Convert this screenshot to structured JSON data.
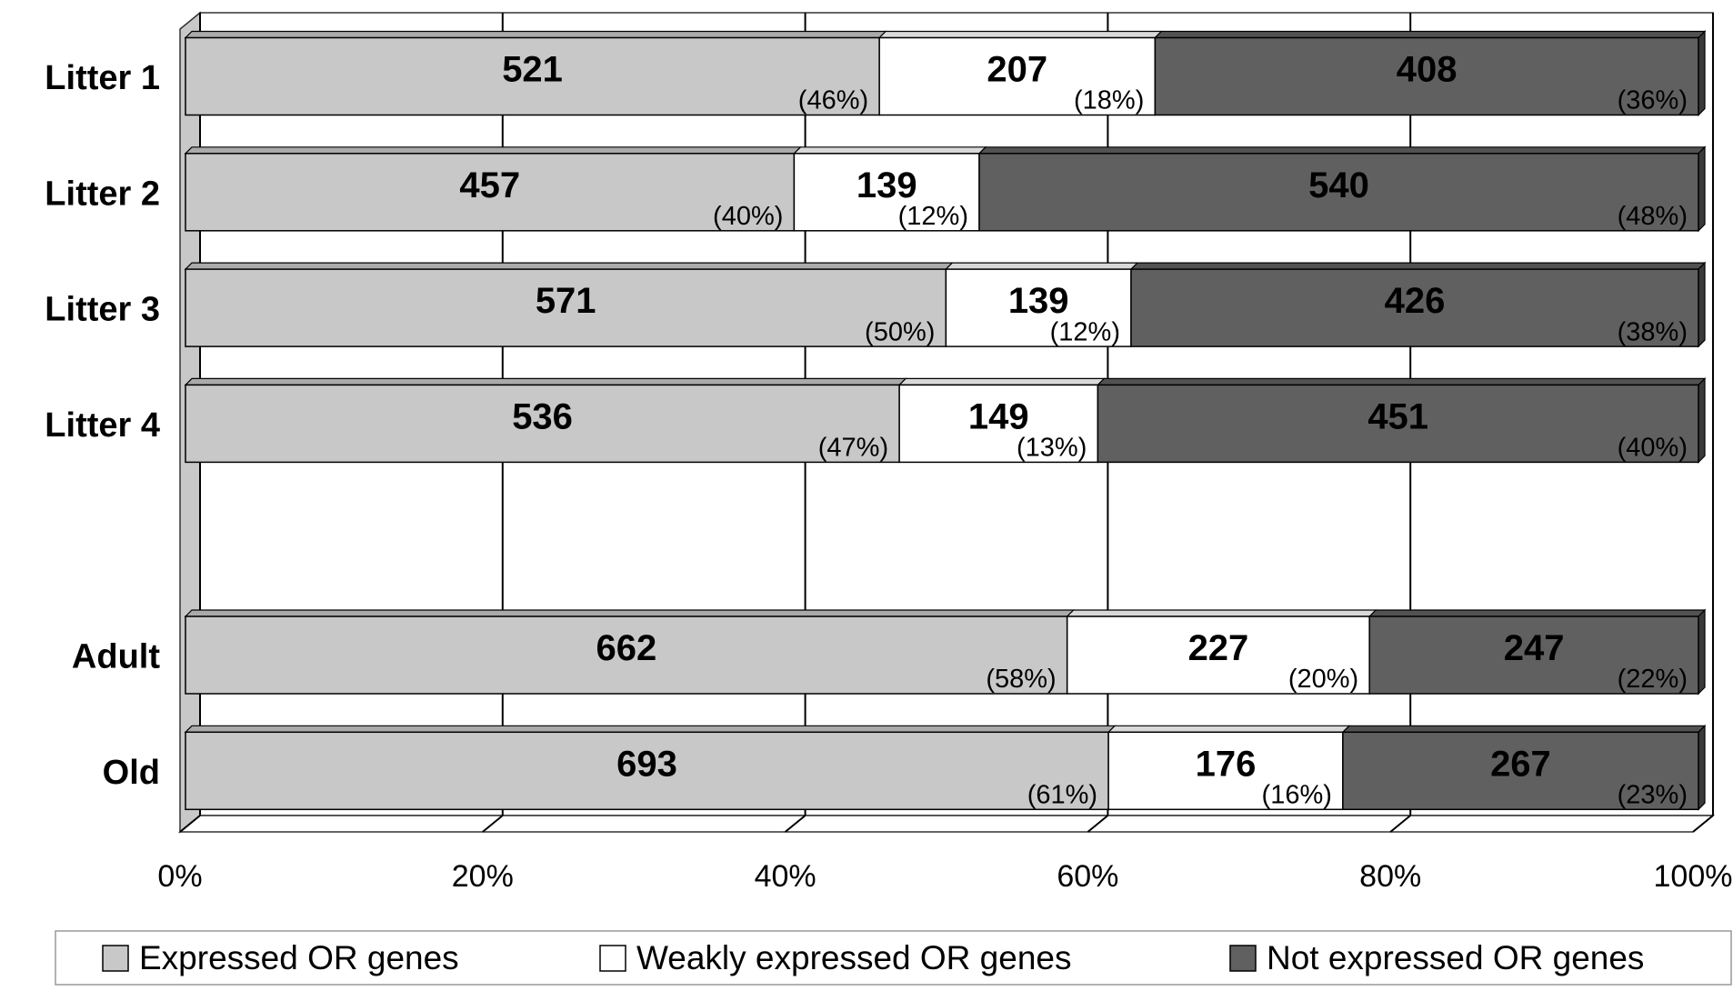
{
  "chart_data": {
    "type": "bar",
    "orientation": "horizontal",
    "stacking": "percent",
    "categories": [
      "Litter 1",
      "Litter 2",
      "Litter 3",
      "Litter 4",
      null,
      "Adult",
      "Old"
    ],
    "series": [
      {
        "name": "Expressed OR genes",
        "color": "#c8c8c8",
        "values": [
          521,
          457,
          571,
          536,
          null,
          662,
          693
        ],
        "percent_labels": [
          "(46%)",
          "(40%)",
          "(50%)",
          "(47%)",
          null,
          "(58%)",
          "(61%)"
        ]
      },
      {
        "name": "Weakly expressed OR genes",
        "color": "#ffffff",
        "values": [
          207,
          139,
          139,
          149,
          null,
          227,
          176
        ],
        "percent_labels": [
          "(18%)",
          "(12%)",
          "(12%)",
          "(13%)",
          null,
          "(20%)",
          "(16%)"
        ]
      },
      {
        "name": "Not expressed OR genes",
        "color": "#606060",
        "values": [
          408,
          540,
          426,
          451,
          null,
          247,
          267
        ],
        "percent_labels": [
          "(36%)",
          "(48%)",
          "(38%)",
          "(40%)",
          null,
          "(22%)",
          "(23%)"
        ]
      }
    ],
    "xlim": [
      0,
      100
    ],
    "xticks": [
      {
        "value": 0,
        "label": "0%"
      },
      {
        "value": 20,
        "label": "20%"
      },
      {
        "value": 40,
        "label": "40%"
      },
      {
        "value": 60,
        "label": "60%"
      },
      {
        "value": 80,
        "label": "80%"
      },
      {
        "value": 100,
        "label": "100%"
      }
    ],
    "grid": true,
    "legend": "bottom"
  }
}
